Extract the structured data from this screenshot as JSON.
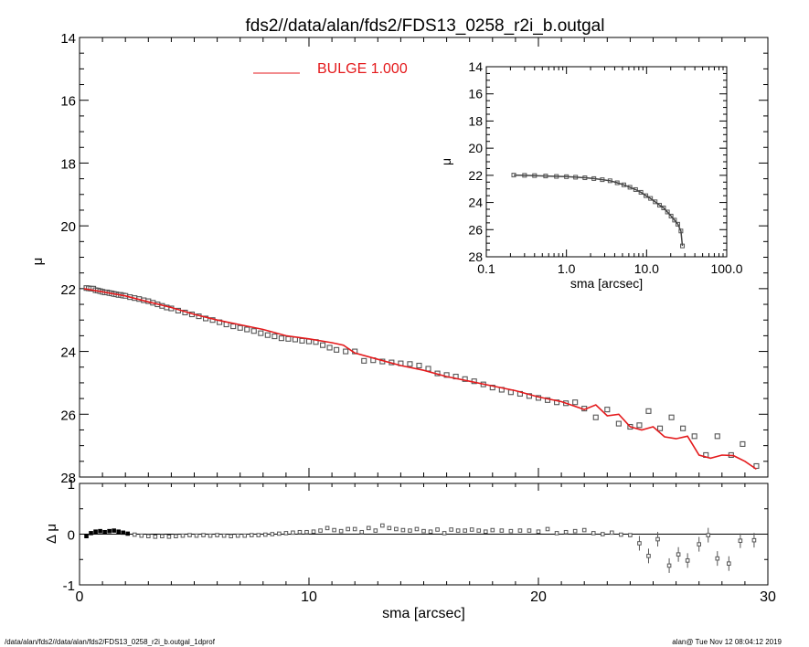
{
  "title": "fds2//data/alan/fds2/FDS13_0258_r2i_b.outgal",
  "footer_left": "/data/alan/fds2//data/alan/fds2/FDS13_0258_r2i_b.outgal_1dprof",
  "footer_right": "alan@  Tue Nov 12 08:04:12 2019",
  "colors": {
    "model": "#e41a1c",
    "points": "#555555",
    "axes": "#000000"
  },
  "chart_data": [
    {
      "type": "scatter",
      "panel": "main",
      "xlabel": "sma [arcsec]",
      "ylabel": "μ",
      "xlim": [
        0,
        30
      ],
      "ylim": [
        28,
        14
      ],
      "yaxis_inverted": true,
      "x_ticks": [
        "0",
        "10",
        "20",
        "30"
      ],
      "y_ticks": [
        "14",
        "16",
        "18",
        "20",
        "22",
        "24",
        "26",
        "28"
      ],
      "legend": {
        "label": "BULGE  1.000",
        "placement": "top-center"
      },
      "series": [
        {
          "name": "data",
          "style": "open-squares",
          "x": [
            0.3,
            0.4,
            0.5,
            0.6,
            0.7,
            0.8,
            0.9,
            1.0,
            1.1,
            1.2,
            1.3,
            1.4,
            1.5,
            1.6,
            1.7,
            1.8,
            1.9,
            2.0,
            2.2,
            2.4,
            2.6,
            2.8,
            3.0,
            3.2,
            3.4,
            3.6,
            3.8,
            4.0,
            4.3,
            4.6,
            4.9,
            5.2,
            5.5,
            5.8,
            6.1,
            6.4,
            6.7,
            7.0,
            7.3,
            7.6,
            7.9,
            8.2,
            8.5,
            8.8,
            9.1,
            9.4,
            9.7,
            10.0,
            10.3,
            10.6,
            10.9,
            11.2,
            11.6,
            12.0,
            12.4,
            12.8,
            13.2,
            13.6,
            14.0,
            14.4,
            14.8,
            15.2,
            15.6,
            16.0,
            16.4,
            16.8,
            17.2,
            17.6,
            18.0,
            18.4,
            18.8,
            19.2,
            19.6,
            20.0,
            20.4,
            20.8,
            21.2,
            21.6,
            22.0,
            22.5,
            23.0,
            23.5,
            24.0,
            24.4,
            24.8,
            25.3,
            25.8,
            26.3,
            26.8,
            27.3,
            27.8,
            28.4,
            28.9,
            29.5
          ],
          "y": [
            21.98,
            21.99,
            22.0,
            22.0,
            22.05,
            22.06,
            22.08,
            22.1,
            22.12,
            22.12,
            22.14,
            22.15,
            22.17,
            22.18,
            22.2,
            22.2,
            22.22,
            22.23,
            22.27,
            22.3,
            22.33,
            22.37,
            22.4,
            22.45,
            22.5,
            22.55,
            22.6,
            22.63,
            22.7,
            22.76,
            22.82,
            22.88,
            22.95,
            23.0,
            23.07,
            23.14,
            23.2,
            23.25,
            23.3,
            23.35,
            23.42,
            23.48,
            23.52,
            23.58,
            23.6,
            23.62,
            23.66,
            23.68,
            23.7,
            23.8,
            23.88,
            23.95,
            24.0,
            24.0,
            24.3,
            24.28,
            24.32,
            24.35,
            24.38,
            24.4,
            24.45,
            24.55,
            24.7,
            24.75,
            24.8,
            24.88,
            24.95,
            25.05,
            25.15,
            25.22,
            25.3,
            25.35,
            25.42,
            25.48,
            25.55,
            25.62,
            25.65,
            25.62,
            25.82,
            26.1,
            25.85,
            26.3,
            26.4,
            26.35,
            25.9,
            26.45,
            26.1,
            26.45,
            26.7,
            27.3,
            26.7,
            27.3,
            26.95,
            27.65
          ]
        },
        {
          "name": "BULGE  1.000",
          "style": "line",
          "x": [
            0.2,
            1.0,
            2.0,
            3.0,
            4.0,
            5.0,
            6.0,
            7.0,
            8.0,
            9.0,
            10.0,
            11.0,
            11.5,
            12.0,
            13.0,
            14.0,
            15.0,
            16.0,
            17.0,
            18.0,
            19.0,
            20.0,
            21.0,
            22.0,
            22.5,
            23.0,
            23.5,
            24.0,
            24.5,
            25.0,
            25.5,
            26.0,
            26.5,
            27.0,
            27.5,
            28.0,
            28.5,
            29.0,
            29.5
          ],
          "y": [
            22.0,
            22.1,
            22.23,
            22.42,
            22.6,
            22.82,
            23.0,
            23.15,
            23.3,
            23.5,
            23.6,
            23.72,
            23.8,
            24.05,
            24.25,
            24.45,
            24.6,
            24.8,
            24.95,
            25.1,
            25.25,
            25.45,
            25.6,
            25.85,
            25.7,
            26.05,
            26.0,
            26.4,
            26.5,
            26.4,
            26.72,
            26.78,
            26.7,
            27.3,
            27.4,
            27.3,
            27.32,
            27.5,
            27.75
          ]
        }
      ]
    },
    {
      "type": "scatter",
      "panel": "inset",
      "xlabel": "sma [arcsec]",
      "ylabel": "μ",
      "xscale": "log",
      "xlim": [
        0.1,
        100
      ],
      "ylim": [
        28,
        14
      ],
      "yaxis_inverted": true,
      "x_ticks": [
        "0.1",
        "1.0",
        "10.0",
        "100.0"
      ],
      "y_ticks": [
        "14",
        "16",
        "18",
        "20",
        "22",
        "24",
        "26",
        "28"
      ],
      "series": [
        {
          "name": "data",
          "style": "open-squares",
          "x": [
            0.22,
            0.3,
            0.4,
            0.55,
            0.75,
            1.0,
            1.3,
            1.7,
            2.2,
            2.8,
            3.5,
            4.3,
            5.2,
            6.2,
            7.3,
            8.5,
            9.8,
            11.2,
            12.8,
            14.5,
            16.3,
            18.2,
            20.2,
            22.3,
            24.5,
            26.8,
            28.0
          ],
          "y": [
            21.98,
            22.0,
            22.02,
            22.05,
            22.08,
            22.1,
            22.14,
            22.18,
            22.24,
            22.32,
            22.4,
            22.55,
            22.7,
            22.88,
            23.05,
            23.25,
            23.5,
            23.7,
            23.95,
            24.2,
            24.4,
            24.7,
            25.0,
            25.3,
            25.6,
            26.1,
            27.2
          ]
        }
      ]
    },
    {
      "type": "scatter",
      "panel": "residual",
      "xlabel": "sma [arcsec]",
      "ylabel": "Δ μ",
      "xlim": [
        0,
        30
      ],
      "ylim": [
        -1,
        1
      ],
      "x_ticks": [
        "0",
        "10",
        "20",
        "30"
      ],
      "y_ticks": [
        "1",
        "0",
        "-1"
      ],
      "series": [
        {
          "name": "residual",
          "style": "open-squares",
          "x": [
            0.3,
            0.5,
            0.7,
            0.9,
            1.1,
            1.3,
            1.5,
            1.7,
            1.9,
            2.1,
            2.4,
            2.7,
            3.0,
            3.3,
            3.6,
            3.9,
            4.2,
            4.5,
            4.8,
            5.1,
            5.4,
            5.7,
            6.0,
            6.3,
            6.6,
            6.9,
            7.2,
            7.5,
            7.8,
            8.1,
            8.4,
            8.7,
            9.0,
            9.3,
            9.6,
            9.9,
            10.2,
            10.5,
            10.8,
            11.1,
            11.4,
            11.7,
            12.0,
            12.3,
            12.6,
            12.9,
            13.2,
            13.5,
            13.8,
            14.1,
            14.4,
            14.7,
            15.0,
            15.3,
            15.6,
            15.9,
            16.2,
            16.5,
            16.8,
            17.1,
            17.4,
            17.7,
            18.0,
            18.4,
            18.8,
            19.2,
            19.6,
            20.0,
            20.4,
            20.8,
            21.2,
            21.6,
            22.0,
            22.4,
            22.8,
            23.2,
            23.6,
            24.0,
            24.4,
            24.8,
            25.2,
            25.7,
            26.1,
            26.5,
            27.0,
            27.4,
            27.8,
            28.3,
            28.8,
            29.4
          ],
          "y": [
            -0.04,
            0.02,
            0.05,
            0.06,
            0.04,
            0.06,
            0.07,
            0.05,
            0.03,
            0.01,
            -0.01,
            -0.03,
            -0.04,
            -0.05,
            -0.04,
            -0.05,
            -0.04,
            -0.03,
            -0.02,
            -0.03,
            -0.02,
            -0.03,
            -0.02,
            -0.03,
            -0.04,
            -0.03,
            -0.03,
            -0.02,
            -0.02,
            -0.01,
            0.0,
            0.01,
            0.02,
            0.03,
            0.04,
            0.04,
            0.05,
            0.07,
            0.12,
            0.08,
            0.06,
            0.1,
            0.1,
            0.04,
            0.12,
            0.07,
            0.17,
            0.12,
            0.1,
            0.08,
            0.07,
            0.1,
            0.06,
            0.05,
            0.09,
            0.02,
            0.09,
            0.07,
            0.07,
            0.09,
            0.07,
            0.05,
            0.08,
            0.07,
            0.06,
            0.07,
            0.07,
            0.05,
            0.1,
            0.02,
            0.04,
            0.06,
            0.08,
            0.02,
            0.0,
            0.03,
            -0.01,
            -0.02,
            -0.18,
            -0.43,
            -0.1,
            -0.62,
            -0.4,
            -0.52,
            -0.2,
            -0.02,
            -0.48,
            -0.58,
            -0.13,
            -0.12
          ]
        }
      ]
    }
  ]
}
